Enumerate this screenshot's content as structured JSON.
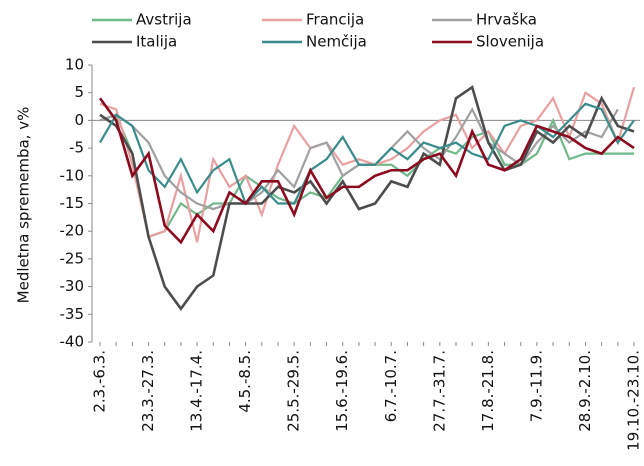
{
  "chart_data": {
    "type": "line",
    "y_label": "Medletna sprememba, v%",
    "categories": [
      "2.3.-6.3.",
      null,
      null,
      "23.3.-27.3.",
      null,
      null,
      "13.4.-17.4.",
      null,
      null,
      "4.5.-8.5.",
      null,
      null,
      "25.5.-29.5.",
      null,
      null,
      "15.6.-19.6.",
      null,
      null,
      "6.7.-10.7.",
      null,
      null,
      "27.7.-31.7.",
      null,
      null,
      "17.8.-21.8.",
      null,
      null,
      "7.9.-11.9.",
      null,
      null,
      "28.9.-2.10.",
      null,
      null,
      "19.10.-23.10."
    ],
    "series": [
      {
        "name": "Avstrija",
        "color": "#6fb98a",
        "values": [
          0,
          1,
          -6,
          -21,
          -20,
          -15,
          -17,
          -15,
          -15,
          -10,
          -12,
          -14,
          -15,
          -13,
          -14,
          -10,
          -8,
          -8,
          -8,
          -10,
          -7,
          -5,
          -6,
          -3,
          -2,
          -8,
          -8,
          -6,
          0,
          -7,
          -6,
          -6,
          -6,
          -6
        ]
      },
      {
        "name": "Francija",
        "color": "#e8a0a0",
        "values": [
          3,
          2,
          -8,
          -21,
          -20,
          -10,
          -22,
          -7,
          -12,
          -10,
          -17,
          -8,
          -1,
          -5,
          -4,
          -8,
          -7,
          -8,
          -7,
          -5,
          -2,
          0,
          1,
          -5,
          -2,
          -6,
          -1,
          0,
          4,
          -3,
          5,
          3,
          -4,
          6
        ]
      },
      {
        "name": "Hrvaška",
        "color": "#a0a0a0",
        "values": [
          0,
          1,
          -1,
          -4,
          -10,
          -13,
          -15,
          -16,
          -15,
          -15,
          -13,
          -9,
          -12,
          -5,
          -4,
          -10,
          -8,
          -8,
          -5,
          -2,
          -5,
          -7,
          -3,
          2,
          -4,
          -6,
          -8,
          -4,
          -1,
          -4,
          -2,
          -3,
          2,
          null
        ]
      },
      {
        "name": "Italija",
        "color": "#4d4d4d",
        "values": [
          1,
          -1,
          -6,
          -21,
          -30,
          -34,
          -30,
          -28,
          -15,
          -15,
          -15,
          -12,
          -13,
          -11,
          -15,
          -11,
          -16,
          -15,
          -11,
          -12,
          -6,
          -8,
          4,
          6,
          -4,
          -9,
          -8,
          -2,
          -4,
          -1,
          -3,
          4,
          -1,
          -2
        ]
      },
      {
        "name": "Nemčija",
        "color": "#3a8c8c",
        "values": [
          -4,
          1,
          -1,
          -9,
          -12,
          -7,
          -13,
          -9,
          -7,
          -15,
          -12,
          -15,
          -15,
          -9,
          -7,
          -3,
          -8,
          -8,
          -5,
          -7,
          -4,
          -5,
          -4,
          -6,
          -7,
          -1,
          0,
          -1,
          -3,
          0,
          3,
          2,
          -4,
          0
        ]
      },
      {
        "name": "Slovenija",
        "color": "#8b0a1e",
        "values": [
          4,
          0,
          -10,
          -6,
          -19,
          -22,
          -17,
          -20,
          -13,
          -15,
          -11,
          -11,
          -17,
          -9,
          -14,
          -12,
          -12,
          -10,
          -9,
          -9,
          -7,
          -6,
          -10,
          -2,
          -8,
          -9,
          -7,
          -1,
          -2,
          -3,
          -5,
          -6,
          -3,
          -5
        ]
      }
    ],
    "ylim": [
      -40,
      10
    ],
    "yticks": [
      -40,
      -35,
      -30,
      -25,
      -20,
      -15,
      -10,
      -5,
      0,
      5,
      10
    ]
  }
}
